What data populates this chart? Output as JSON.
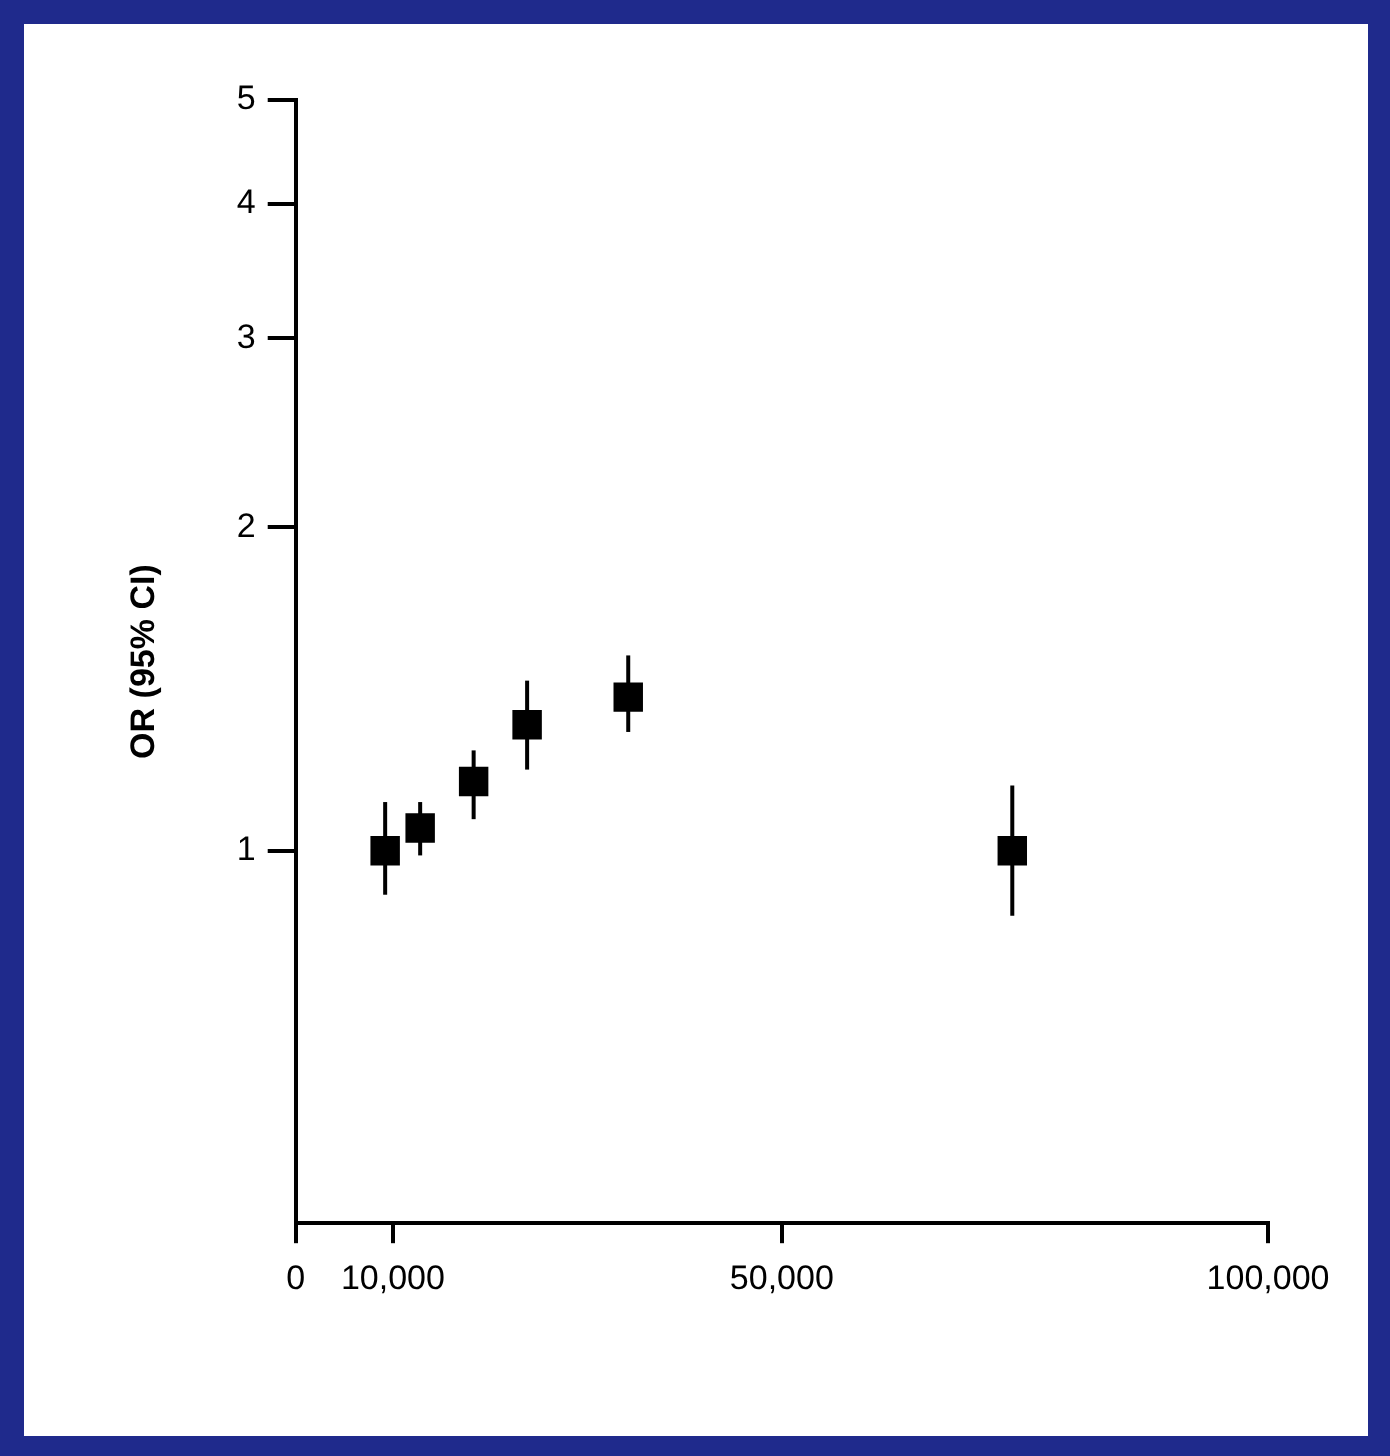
{
  "chart_data": {
    "type": "scatter",
    "ylabel": "OR (95% CI)",
    "log": "y",
    "marker": "square",
    "grid": false,
    "legend": false,
    "xlim": [
      0,
      100000
    ],
    "xticks": [
      0,
      {
        "value": 10000,
        "label": "10,000"
      },
      {
        "value": 50000,
        "label": "50,000"
      },
      {
        "value": 100000,
        "label": "100,000"
      }
    ],
    "ylim": [
      0.45,
      5
    ],
    "yticks": [
      1,
      2,
      3,
      4,
      5
    ],
    "series": [
      {
        "color": "#000000",
        "x": [
          9200,
          12800,
          18300,
          23800,
          34200,
          73700
        ],
        "values": [
          1.0,
          1.05,
          1.16,
          1.31,
          1.39,
          1.0
        ],
        "errors": [
          [
            0.91,
            1.11
          ],
          [
            0.99,
            1.11
          ],
          [
            1.07,
            1.24
          ],
          [
            1.19,
            1.44
          ],
          [
            1.29,
            1.52
          ],
          [
            0.87,
            1.15
          ]
        ]
      }
    ]
  }
}
